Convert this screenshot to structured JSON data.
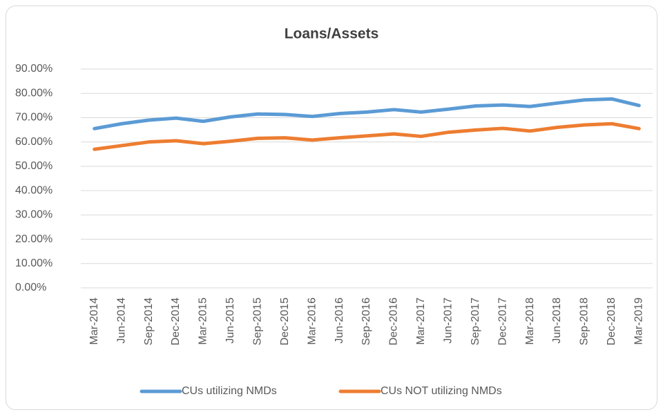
{
  "chart_data": {
    "type": "line",
    "title": "Loans/Assets",
    "categories": [
      "Mar-2014",
      "Jun-2014",
      "Sep-2014",
      "Dec-2014",
      "Mar-2015",
      "Jun-2015",
      "Sep-2015",
      "Dec-2015",
      "Mar-2016",
      "Jun-2016",
      "Sep-2016",
      "Dec-2016",
      "Mar-2017",
      "Jun-2017",
      "Sep-2017",
      "Dec-2017",
      "Mar-2018",
      "Jun-2018",
      "Sep-2018",
      "Dec-2018",
      "Mar-2019"
    ],
    "series": [
      {
        "name": "CUs utilizing NMDs",
        "color": "#5b9bd5",
        "values": [
          65.5,
          67.5,
          69,
          69.8,
          68.5,
          70.3,
          71.5,
          71.3,
          70.5,
          71.7,
          72.3,
          73.3,
          72.3,
          73.5,
          74.8,
          75.2,
          74.6,
          76,
          77.3,
          77.7,
          75
        ]
      },
      {
        "name": "CUs NOT utilizing NMDs",
        "color": "#ed7d31",
        "values": [
          57,
          58.5,
          60,
          60.5,
          59.3,
          60.3,
          61.5,
          61.7,
          60.8,
          61.7,
          62.5,
          63.3,
          62.3,
          64,
          64.9,
          65.6,
          64.5,
          66,
          67,
          67.5,
          65.5
        ]
      }
    ],
    "ylim": [
      0,
      90
    ],
    "yticks": [
      {
        "value": 0,
        "label": "0.00%"
      },
      {
        "value": 10,
        "label": "10.00%"
      },
      {
        "value": 20,
        "label": "20.00%"
      },
      {
        "value": 30,
        "label": "30.00%"
      },
      {
        "value": 40,
        "label": "40.00%"
      },
      {
        "value": 50,
        "label": "50.00%"
      },
      {
        "value": 60,
        "label": "60.00%"
      },
      {
        "value": 70,
        "label": "70.00%"
      },
      {
        "value": 80,
        "label": "80.00%"
      },
      {
        "value": 90,
        "label": "90.00%"
      }
    ],
    "grid": true,
    "legend": "bottom"
  }
}
